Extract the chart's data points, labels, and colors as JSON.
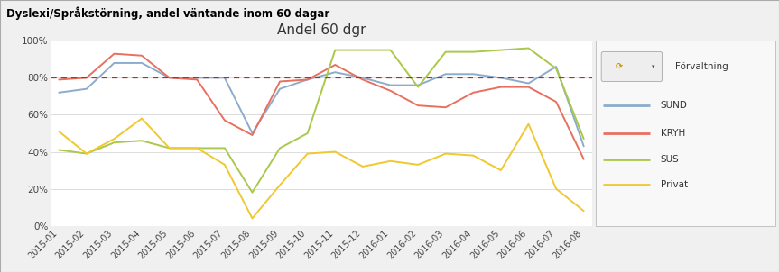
{
  "title": "Andel 60 dgr",
  "header": "Dyslexi/Språkstörning, andel väntande inom 60 dagar",
  "x_labels": [
    "2015-01",
    "2015-02",
    "2015-03",
    "2015-04",
    "2015-05",
    "2015-06",
    "2015-07",
    "2015-08",
    "2015-09",
    "2015-10",
    "2015-11",
    "2015-12",
    "2016-01",
    "2016-02",
    "2016-03",
    "2016-04",
    "2016-05",
    "2016-06",
    "2016-07",
    "2016-08"
  ],
  "SUND": [
    0.72,
    0.74,
    0.88,
    0.88,
    0.8,
    0.8,
    0.8,
    0.5,
    0.74,
    0.79,
    0.83,
    0.8,
    0.76,
    0.76,
    0.82,
    0.82,
    0.8,
    0.77,
    0.86,
    0.43
  ],
  "KRYH": [
    0.79,
    0.8,
    0.93,
    0.92,
    0.8,
    0.79,
    0.57,
    0.49,
    0.78,
    0.79,
    0.87,
    0.79,
    0.73,
    0.65,
    0.64,
    0.72,
    0.75,
    0.75,
    0.67,
    0.36
  ],
  "SUS": [
    0.41,
    0.39,
    0.45,
    0.46,
    0.42,
    0.42,
    0.42,
    0.18,
    0.42,
    0.5,
    0.95,
    0.95,
    0.95,
    0.75,
    0.94,
    0.94,
    0.95,
    0.96,
    0.85,
    0.47
  ],
  "Privat": [
    0.51,
    0.39,
    0.47,
    0.58,
    0.42,
    0.42,
    0.33,
    0.04,
    0.22,
    0.39,
    0.4,
    0.32,
    0.35,
    0.33,
    0.39,
    0.38,
    0.3,
    0.55,
    0.2,
    0.08
  ],
  "target_line": 0.8,
  "ylim": [
    0,
    1.0
  ],
  "yticks": [
    0.0,
    0.2,
    0.4,
    0.6,
    0.8,
    1.0
  ],
  "ytick_labels": [
    "0%",
    "20%",
    "40%",
    "60%",
    "80%",
    "100%"
  ],
  "color_SUND": "#8caccc",
  "color_KRYH": "#e87060",
  "color_SUS": "#aac84a",
  "color_Privat": "#f0c830",
  "color_target": "#cc2222",
  "background_color": "#f0f0f0",
  "plot_bg_color": "#ffffff",
  "header_bg_color": "#e0e0e0",
  "legend_title": "Förvaltning",
  "legend_series": [
    "SUND",
    "KRYH",
    "SUS",
    "Privat"
  ],
  "title_fontsize": 11,
  "header_fontsize": 8.5,
  "tick_fontsize": 7.5,
  "border_color": "#aaaaaa"
}
